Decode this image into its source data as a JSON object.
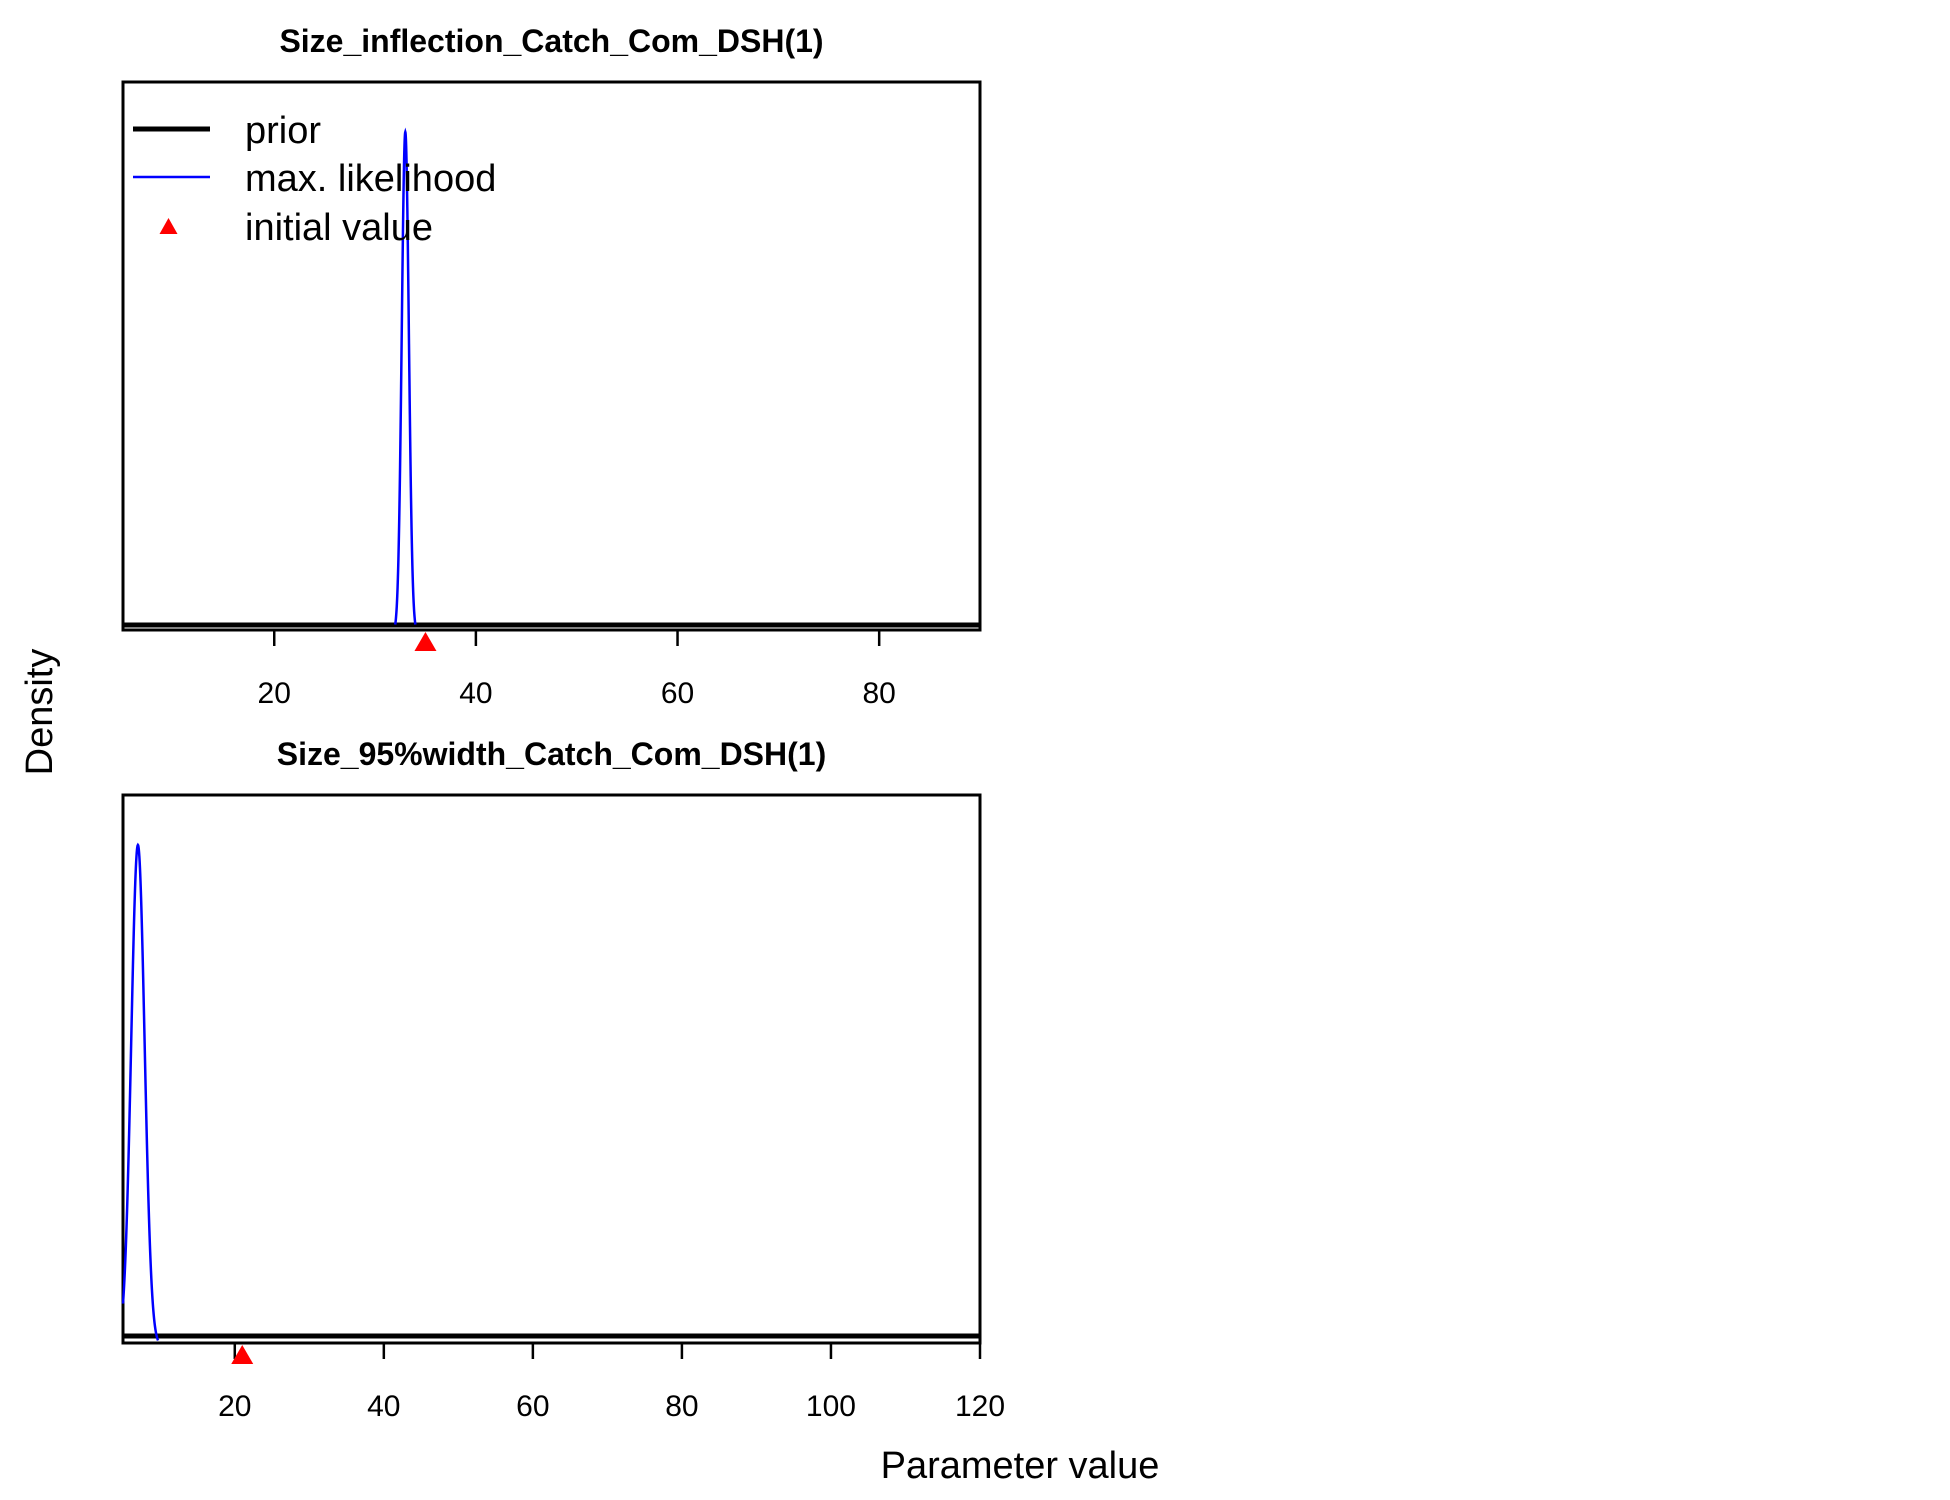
{
  "chart_data": [
    {
      "type": "line",
      "title": "Size_inflection_Catch_Com_DSH(1)",
      "xlim": [
        5,
        90
      ],
      "x_ticks": [
        20,
        40,
        60,
        80
      ],
      "x_tick_labels": [
        "20",
        "40",
        "60",
        "80"
      ],
      "legend": {
        "placement": "top-left",
        "entries": [
          {
            "label": "prior",
            "color": "#000000",
            "symbol": "thick-line"
          },
          {
            "label": "max. likelihood",
            "color": "#0000ff",
            "symbol": "line"
          },
          {
            "label": "initial value",
            "color": "#ff0000",
            "symbol": "triangle"
          }
        ]
      },
      "series": [
        {
          "name": "prior",
          "color": "#000000",
          "x": [
            5,
            90
          ],
          "y": [
            0,
            0
          ]
        },
        {
          "name": "max. likelihood",
          "color": "#0000ff",
          "distribution": "normal",
          "mean": 33.0,
          "sd": 0.35,
          "range": [
            32.0,
            34.0
          ]
        }
      ],
      "initial_value": 35.0
    },
    {
      "type": "line",
      "title": "Size_95%width_Catch_Com_DSH(1)",
      "xlim": [
        5,
        120
      ],
      "x_ticks": [
        20,
        40,
        60,
        80,
        100,
        120
      ],
      "x_tick_labels": [
        "20",
        "40",
        "60",
        "80",
        "100",
        "120"
      ],
      "series": [
        {
          "name": "prior",
          "color": "#000000",
          "x": [
            5,
            120
          ],
          "y": [
            0,
            0
          ]
        },
        {
          "name": "max. likelihood",
          "color": "#0000ff",
          "distribution": "normal",
          "mean": 7.0,
          "sd": 0.9,
          "range": [
            5.0,
            9.7
          ]
        }
      ],
      "initial_value": 21.0
    }
  ],
  "axes": {
    "xlabel": "Parameter value",
    "ylabel": "Density"
  }
}
